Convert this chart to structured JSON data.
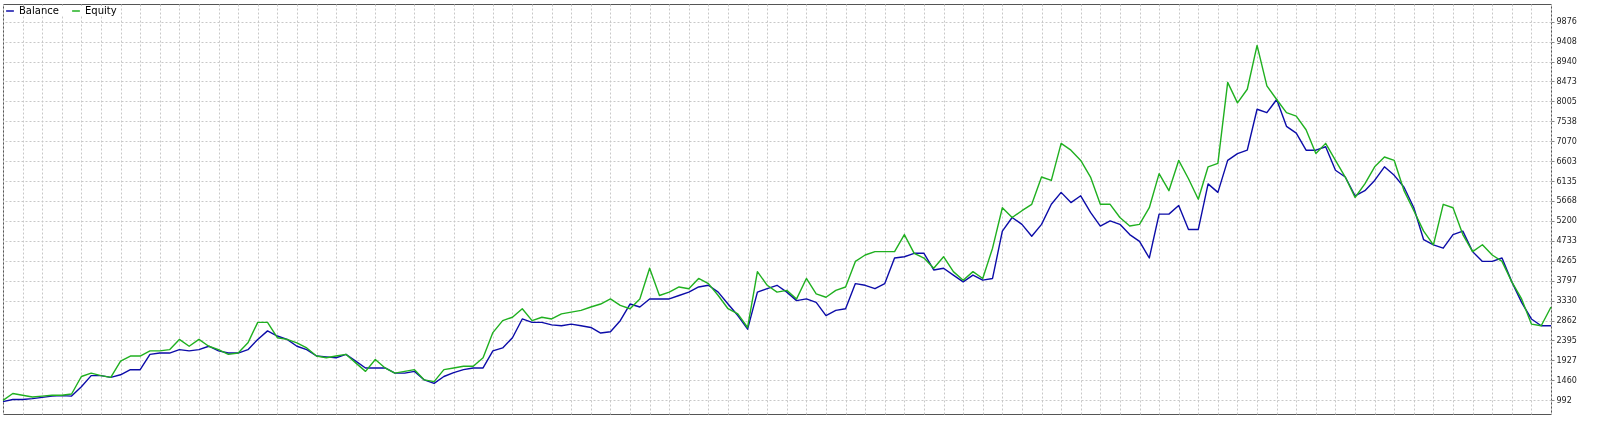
{
  "chart_data": {
    "type": "line",
    "categories": [
      null,
      null,
      null,
      null,
      null,
      null,
      null,
      null,
      null,
      null,
      null,
      null,
      null,
      null,
      null,
      null,
      null,
      null,
      null,
      null,
      null,
      null,
      null,
      null,
      null,
      null,
      null,
      null,
      null,
      null,
      null,
      null,
      null,
      null,
      null,
      null,
      null,
      null,
      null,
      null,
      null,
      null,
      null,
      null,
      null,
      null,
      null,
      null,
      null,
      null,
      null,
      null,
      null,
      null,
      null,
      null,
      null,
      null,
      null,
      null,
      null,
      null,
      null,
      null,
      null,
      null,
      null,
      null,
      null,
      null,
      null,
      null,
      null,
      null,
      null,
      null,
      null,
      null,
      null,
      null,
      null,
      null,
      null,
      null,
      null,
      null,
      null,
      null,
      null,
      null,
      null,
      null,
      null,
      null,
      null,
      null,
      null,
      null,
      null,
      null,
      null,
      null,
      null,
      null,
      null,
      null,
      null,
      null,
      null,
      null,
      null,
      null,
      null,
      null,
      null,
      null,
      null,
      null,
      null,
      null,
      null,
      null,
      null,
      null,
      null,
      null,
      null,
      null,
      null,
      null,
      null,
      null,
      null,
      null,
      null,
      null,
      null,
      null,
      null,
      null,
      null,
      null,
      null,
      null,
      null,
      null,
      null,
      null,
      null,
      null,
      null,
      null,
      null,
      null,
      null,
      null,
      null,
      null,
      null
    ],
    "series": [
      {
        "name": "Balance",
        "color": "#0c0ca8",
        "values": [
          960,
          1010,
          1010,
          1030,
          1060,
          1090,
          1100,
          1090,
          1310,
          1570,
          1570,
          1530,
          1590,
          1710,
          1710,
          2070,
          2100,
          2100,
          2180,
          2150,
          2180,
          2260,
          2150,
          2100,
          2100,
          2180,
          2420,
          2620,
          2500,
          2420,
          2260,
          2180,
          2030,
          2010,
          1990,
          2070,
          1910,
          1750,
          1750,
          1750,
          1630,
          1630,
          1670,
          1470,
          1390,
          1550,
          1640,
          1710,
          1750,
          1750,
          2150,
          2220,
          2460,
          2900,
          2820,
          2820,
          2760,
          2740,
          2780,
          2740,
          2700,
          2570,
          2600,
          2860,
          3250,
          3180,
          3370,
          3370,
          3370,
          3450,
          3530,
          3650,
          3690,
          3530,
          3250,
          2980,
          2660,
          3530,
          3610,
          3690,
          3530,
          3330,
          3370,
          3290,
          2980,
          3100,
          3140,
          3730,
          3690,
          3610,
          3730,
          4330,
          4360,
          4440,
          4440,
          4050,
          4090,
          3930,
          3770,
          3930,
          3810,
          3850,
          4960,
          5280,
          5120,
          4840,
          5120,
          5590,
          5870,
          5630,
          5790,
          5400,
          5080,
          5200,
          5120,
          4880,
          4720,
          4330,
          5360,
          5360,
          5560,
          5000,
          5000,
          6070,
          5870,
          6620,
          6780,
          6860,
          7820,
          7740,
          8050,
          7420,
          7260,
          6860,
          6860,
          6940,
          6390,
          6230,
          5790,
          5910,
          6150,
          6470,
          6270,
          5990,
          5510,
          4760,
          4640,
          4560,
          4880,
          4960,
          4480,
          4250,
          4250,
          4330,
          3770,
          3290,
          2900,
          2740,
          2740
        ]
      },
      {
        "name": "Equity",
        "color": "#20b020",
        "values": [
          990,
          1150,
          1110,
          1070,
          1090,
          1110,
          1110,
          1140,
          1550,
          1630,
          1570,
          1530,
          1910,
          2030,
          2030,
          2150,
          2150,
          2180,
          2420,
          2260,
          2420,
          2260,
          2180,
          2070,
          2100,
          2340,
          2820,
          2820,
          2460,
          2420,
          2340,
          2220,
          2030,
          1990,
          2030,
          2070,
          1870,
          1670,
          1950,
          1750,
          1630,
          1670,
          1710,
          1470,
          1430,
          1710,
          1750,
          1790,
          1790,
          1990,
          2580,
          2860,
          2940,
          3140,
          2860,
          2940,
          2900,
          3020,
          3060,
          3100,
          3180,
          3250,
          3370,
          3220,
          3140,
          3370,
          4090,
          3450,
          3530,
          3650,
          3610,
          3850,
          3730,
          3450,
          3140,
          3020,
          2700,
          4010,
          3690,
          3530,
          3570,
          3370,
          3850,
          3490,
          3410,
          3570,
          3650,
          4250,
          4400,
          4480,
          4480,
          4480,
          4880,
          4440,
          4330,
          4090,
          4360,
          4010,
          3810,
          4010,
          3850,
          4560,
          5510,
          5280,
          5440,
          5590,
          6230,
          6150,
          7020,
          6860,
          6620,
          6230,
          5590,
          5590,
          5280,
          5080,
          5120,
          5510,
          6310,
          5910,
          6620,
          6190,
          5710,
          6470,
          6550,
          8450,
          7970,
          8290,
          9320,
          8370,
          8050,
          7740,
          7660,
          7340,
          6780,
          7020,
          6620,
          6230,
          5750,
          6070,
          6470,
          6700,
          6620,
          5910,
          5440,
          4960,
          4640,
          5590,
          5510,
          4880,
          4480,
          4640,
          4400,
          4250,
          3770,
          3370,
          2780,
          2740,
          3180
        ]
      }
    ],
    "ylim": [
      670,
      10290
    ],
    "yticks": [
      992,
      1460,
      1927,
      2395,
      2862,
      3330,
      3797,
      4265,
      4733,
      5200,
      5668,
      6135,
      6603,
      7070,
      7538,
      8005,
      8473,
      8940,
      9408,
      9876
    ],
    "grid": true,
    "legend": "top left",
    "tick_labels": "y"
  }
}
